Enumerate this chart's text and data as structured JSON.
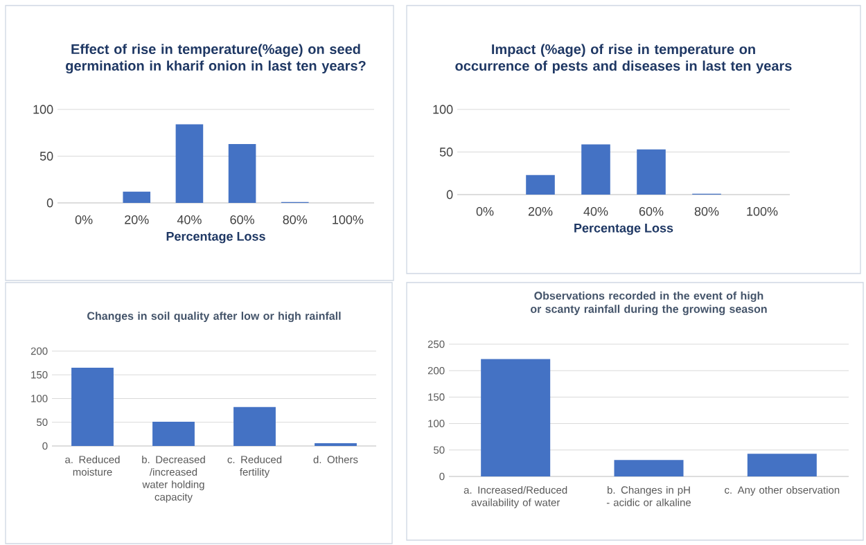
{
  "chart_data": [
    {
      "type": "bar",
      "title": "Effect of rise in temperature(%age)  on seed germination in kharif onion in last ten years?",
      "xlabel": "Percentage Loss",
      "categories": [
        "0%",
        "20%",
        "40%",
        "60%",
        "80%",
        "100%"
      ],
      "values": [
        0,
        12,
        84,
        63,
        1,
        0
      ],
      "color": "#4472c4",
      "ylim": [
        0,
        100
      ],
      "yticks": [
        0,
        50,
        100
      ],
      "grid": "y"
    },
    {
      "type": "bar",
      "title": "Impact (%age)  of rise in temperature on occurrence of pests and diseases in last ten years",
      "xlabel": "Percentage Loss",
      "categories": [
        "0%",
        "20%",
        "40%",
        "60%",
        "80%",
        "100%"
      ],
      "values": [
        0,
        23,
        59,
        53,
        1,
        0
      ],
      "color": "#4472c4",
      "ylim": [
        0,
        100
      ],
      "yticks": [
        0,
        50,
        100
      ],
      "grid": "y"
    },
    {
      "type": "bar",
      "title": "Changes in  soil quality after low or high rainfall",
      "categories": [
        "a. Reduced moisture",
        "b. Decreased /increased water holding capacity",
        "c. Reduced fertility",
        "d. Others"
      ],
      "values": [
        165,
        51,
        82,
        6
      ],
      "color": "#4472c4",
      "ylim": [
        0,
        200
      ],
      "yticks": [
        0,
        50,
        100,
        150,
        200
      ],
      "grid": "y"
    },
    {
      "type": "bar",
      "title": "Observations recorded in the event of high or scanty rainfall during the growing season",
      "categories": [
        "a. Increased/Reduced availability of water",
        "b. Changes in pH - acidic or alkaline",
        "c. Any other observation"
      ],
      "values": [
        222,
        31,
        43
      ],
      "color": "#4472c4",
      "ylim": [
        0,
        250
      ],
      "yticks": [
        0,
        50,
        100,
        150,
        200,
        250
      ],
      "grid": "y"
    }
  ]
}
